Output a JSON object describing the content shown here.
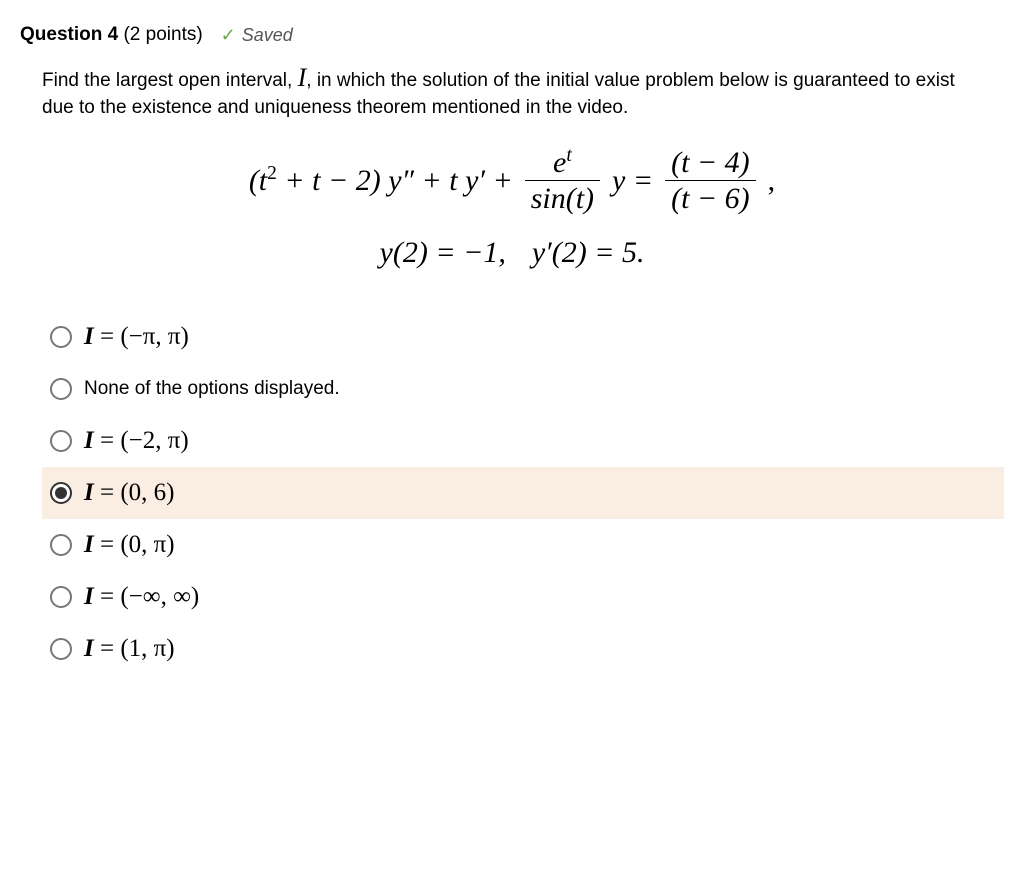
{
  "header": {
    "question_label": "Question 4",
    "points": "(2 points)",
    "saved_label": "Saved"
  },
  "prompt": {
    "part1": "Find the largest open interval, ",
    "interval_symbol": "I",
    "part2": ",  in which the solution of the initial value problem below is guaranteed to exist due to the existence and uniqueness theorem mentioned in the video."
  },
  "equation": {
    "lhs_poly": "(t",
    "lhs_exp": "2",
    "lhs_rest": " + t − 2) y″ + t y′ + ",
    "frac1_num_e": "e",
    "frac1_num_exp": "t",
    "frac1_den": "sin(t)",
    "mid_y": " y = ",
    "frac2_num": "(t − 4)",
    "frac2_den": "(t − 6)",
    "trail_comma": ",",
    "ic1": "y(2) = −1,",
    "ic2": "y′(2) = 5."
  },
  "options": [
    {
      "selected": false,
      "math": true,
      "text": "I = (−π, π)"
    },
    {
      "selected": false,
      "math": false,
      "text": "None of the options displayed."
    },
    {
      "selected": false,
      "math": true,
      "text": "I = (−2, π)"
    },
    {
      "selected": true,
      "math": true,
      "text": "I = (0, 6)"
    },
    {
      "selected": false,
      "math": true,
      "text": "I = (0, π)"
    },
    {
      "selected": false,
      "math": true,
      "text": "I = (−∞, ∞)"
    },
    {
      "selected": false,
      "math": true,
      "text": "I = (1, π)"
    }
  ],
  "colors": {
    "selected_bg": "#faeee2",
    "check_color": "#6aa84f"
  }
}
